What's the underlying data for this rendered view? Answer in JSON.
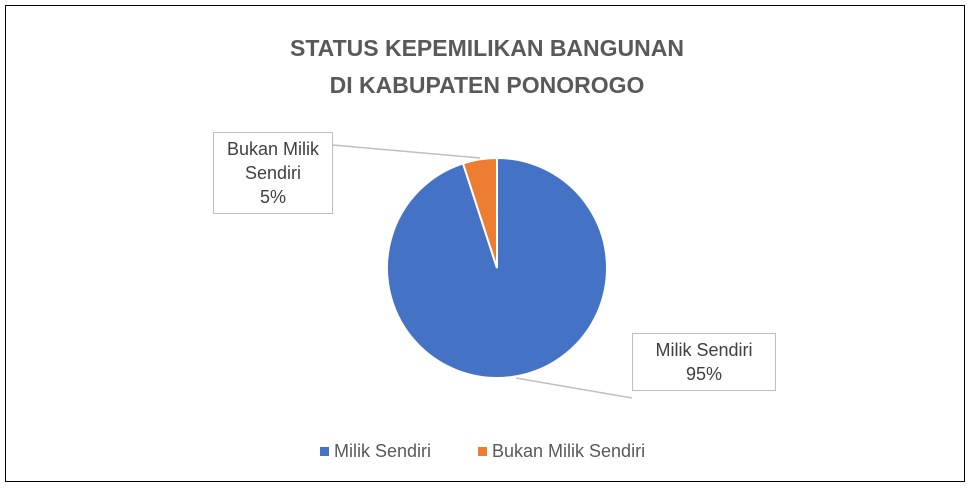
{
  "chart_data": {
    "type": "pie",
    "title": [
      "STATUS KEPEMILIKAN BANGUNAN",
      "DI KABUPATEN PONOROGO"
    ],
    "categories": [
      "Milik Sendiri",
      "Bukan Milik Sendiri"
    ],
    "values": [
      95,
      5
    ],
    "value_labels": [
      "95%",
      "5%"
    ],
    "colors": [
      "#4472c4",
      "#ed7d31"
    ],
    "legend": "bottom"
  }
}
